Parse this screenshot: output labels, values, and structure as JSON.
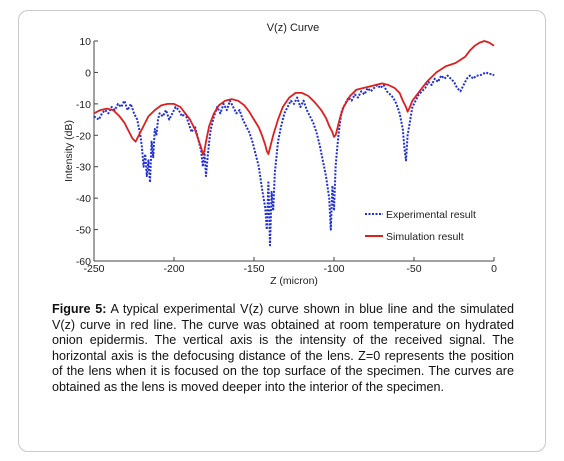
{
  "chart_data": {
    "type": "line",
    "title": "V(z) Curve",
    "xlabel": "Z (micron)",
    "ylabel": "Intensity (dB)",
    "xlim": [
      -250,
      0
    ],
    "ylim": [
      -60,
      10
    ],
    "x_ticks": [
      -250,
      -200,
      -150,
      -100,
      -50,
      0
    ],
    "x_tick_labels": [
      "-250",
      "-200",
      "-150",
      "-100",
      "-50",
      "0"
    ],
    "y_ticks": [
      -60,
      -50,
      -40,
      -30,
      -20,
      -10,
      0,
      10
    ],
    "y_tick_labels": [
      "-60",
      "-50",
      "-40",
      "-30",
      "-20",
      "-10",
      "0",
      "10"
    ],
    "grid": false,
    "legend_position": "lower-right",
    "series": [
      {
        "name": "Experimental result",
        "color": "#1f2fd6",
        "style": "dotted",
        "x": [
          -250,
          -247,
          -245,
          -243,
          -241,
          -239,
          -237,
          -235,
          -233,
          -231,
          -229,
          -227,
          -225,
          -223,
          -221,
          -220,
          -219,
          -218,
          -217,
          -216,
          -215,
          -214,
          -213,
          -212,
          -211,
          -210,
          -209,
          -207,
          -205,
          -203,
          -201,
          -199,
          -197,
          -195,
          -193,
          -191,
          -189,
          -187,
          -185,
          -183,
          -182,
          -181,
          -180,
          -179,
          -178,
          -177,
          -175,
          -173,
          -171,
          -169,
          -167,
          -165,
          -163,
          -161,
          -159,
          -157,
          -155,
          -153,
          -151,
          -149,
          -147,
          -145,
          -143,
          -142,
          -141,
          -140,
          -139,
          -138,
          -137,
          -136,
          -135,
          -133,
          -131,
          -129,
          -127,
          -125,
          -123,
          -121,
          -119,
          -117,
          -115,
          -113,
          -111,
          -109,
          -107,
          -105,
          -103,
          -102,
          -101,
          -100,
          -99,
          -98,
          -97,
          -96,
          -95,
          -93,
          -91,
          -89,
          -87,
          -85,
          -83,
          -81,
          -79,
          -77,
          -75,
          -73,
          -71,
          -69,
          -67,
          -65,
          -63,
          -61,
          -59,
          -57,
          -56,
          -55,
          -54,
          -53,
          -52,
          -51,
          -49,
          -47,
          -45,
          -43,
          -41,
          -39,
          -37,
          -35,
          -33,
          -31,
          -29,
          -27,
          -25,
          -23,
          -21,
          -19,
          -17,
          -15,
          -13,
          -11,
          -9,
          -7,
          -5,
          -3,
          -1,
          0
        ],
        "y": [
          -14,
          -15,
          -13,
          -12,
          -13,
          -11,
          -12,
          -10,
          -11,
          -9,
          -12,
          -10,
          -13,
          -15,
          -20,
          -24,
          -30,
          -26,
          -33,
          -28,
          -35,
          -22,
          -27,
          -18,
          -20,
          -15,
          -13,
          -14,
          -12,
          -15,
          -13,
          -11,
          -12,
          -14,
          -13,
          -16,
          -19,
          -17,
          -21,
          -25,
          -30,
          -25,
          -33,
          -27,
          -22,
          -18,
          -14,
          -11,
          -13,
          -10,
          -12,
          -9,
          -11,
          -13,
          -12,
          -15,
          -17,
          -19,
          -22,
          -26,
          -30,
          -37,
          -43,
          -50,
          -35,
          -55,
          -38,
          -44,
          -32,
          -27,
          -22,
          -17,
          -13,
          -11,
          -9,
          -10,
          -8,
          -11,
          -9,
          -12,
          -14,
          -16,
          -19,
          -23,
          -28,
          -33,
          -40,
          -50,
          -36,
          -44,
          -30,
          -24,
          -19,
          -15,
          -12,
          -10,
          -8,
          -9,
          -7,
          -8,
          -6,
          -7,
          -5,
          -6,
          -5,
          -4,
          -5,
          -4,
          -6,
          -7,
          -8,
          -10,
          -13,
          -18,
          -24,
          -28,
          -20,
          -17,
          -14,
          -11,
          -9,
          -7,
          -6,
          -5,
          -3,
          -4,
          -2,
          -3,
          -1,
          -2,
          -1,
          -2,
          -3,
          -5,
          -6,
          -4,
          -2,
          -1,
          -2,
          -1,
          -1,
          -0.5,
          0,
          -0.5,
          -0.5,
          -1
        ]
      },
      {
        "name": "Simulation result",
        "color": "#dc1f1f",
        "style": "solid",
        "x": [
          -250,
          -246,
          -242,
          -238,
          -234,
          -231,
          -228,
          -226,
          -224,
          -222,
          -219,
          -216,
          -212,
          -208,
          -204,
          -200,
          -196,
          -193,
          -190,
          -187,
          -185,
          -183,
          -182,
          -181,
          -180,
          -178,
          -175,
          -172,
          -168,
          -164,
          -160,
          -156,
          -153,
          -150,
          -147,
          -145,
          -143,
          -142,
          -141,
          -140,
          -138,
          -135,
          -132,
          -128,
          -124,
          -120,
          -116,
          -112,
          -108,
          -105,
          -103,
          -101,
          -100,
          -99,
          -98,
          -96,
          -94,
          -90,
          -86,
          -82,
          -78,
          -74,
          -70,
          -66,
          -62,
          -59,
          -57,
          -55,
          -54,
          -53,
          -51,
          -48,
          -45,
          -42,
          -39,
          -36,
          -33,
          -30,
          -27,
          -24,
          -21,
          -18,
          -15,
          -12,
          -9,
          -6,
          -3,
          0
        ],
        "y": [
          -13,
          -12,
          -11.5,
          -12,
          -14,
          -16,
          -19,
          -21,
          -22,
          -20,
          -17,
          -14,
          -12,
          -10.5,
          -10,
          -10,
          -11,
          -13,
          -15,
          -18,
          -21,
          -24,
          -26,
          -25,
          -22,
          -17,
          -13,
          -10.5,
          -9,
          -8.5,
          -9,
          -10.5,
          -12.5,
          -15,
          -17.5,
          -20,
          -23,
          -25,
          -26,
          -24,
          -20,
          -15,
          -11,
          -8,
          -6.5,
          -6.5,
          -7.5,
          -9.5,
          -12,
          -14.5,
          -17,
          -19,
          -20.5,
          -20,
          -18,
          -14,
          -11,
          -7.5,
          -5.5,
          -5,
          -4.5,
          -4,
          -3.5,
          -4,
          -5,
          -6.5,
          -9,
          -11,
          -12.5,
          -11.5,
          -9,
          -7,
          -5,
          -3,
          -1.5,
          0,
          1,
          2,
          2.5,
          3,
          4,
          5,
          7,
          8.5,
          9.5,
          10,
          9.5,
          8.5
        ]
      }
    ]
  },
  "caption": {
    "label": "Figure 5:",
    "text": "A typical experimental V(z) curve shown in blue line and the simulated V(z) curve in red line. The curve was obtained at room temperature on hydrated onion epidermis. The vertical axis is the intensity of the received signal.  The horizontal axis is the defocusing distance of the lens.  Z=0 represents the position of the lens when it is focused on the top surface of the specimen. The curves are obtained as the lens is moved deeper into the interior of the specimen."
  }
}
